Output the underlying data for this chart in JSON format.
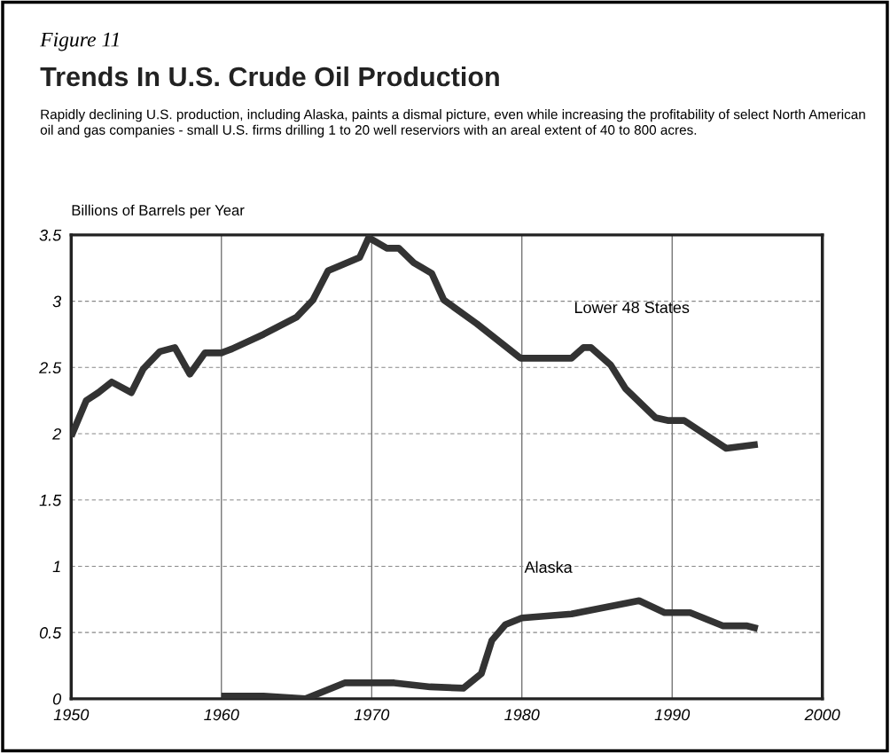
{
  "chart_data": {
    "type": "line",
    "title": "Trends In U.S. Crude Oil Production",
    "subtitle": "Rapidly declining U.S. production, including Alaska, paints a dismal picture, even while increasing the profitability of select North American oil and gas companies - small U.S. firms drilling 1 to 20 well reserviors with an areal extent of 40 to 800 acres.",
    "annotations": [
      "Figure 11"
    ],
    "ylabel": "Billions of Barrels per Year",
    "series": [
      {
        "name": "Lower 48 States",
        "color": "#333333",
        "x": [
          1950,
          1951,
          1951.8,
          1952.7,
          1954,
          1954.8,
          1955.9,
          1956.9,
          1957.9,
          1958.9,
          1960,
          1960.7,
          1962.8,
          1965,
          1966.1,
          1967.1,
          1969.2,
          1969.8,
          1971,
          1971.8,
          1972.8,
          1974,
          1974.8,
          1977,
          1979.9,
          1983.3,
          1984.1,
          1984.6,
          1985.9,
          1986.9,
          1988.9,
          1989.7,
          1990.8,
          1993.6,
          1995.7
        ],
        "values": [
          1.98,
          2.25,
          2.31,
          2.39,
          2.31,
          2.49,
          2.62,
          2.65,
          2.45,
          2.61,
          2.61,
          2.64,
          2.75,
          2.88,
          3.01,
          3.23,
          3.33,
          3.48,
          3.4,
          3.4,
          3.29,
          3.21,
          3.01,
          2.83,
          2.57,
          2.57,
          2.65,
          2.65,
          2.52,
          2.34,
          2.12,
          2.1,
          2.1,
          1.89,
          1.92
        ]
      },
      {
        "name": "Alaska",
        "color": "#333333",
        "x": [
          1960,
          1962.8,
          1965.6,
          1968.2,
          1971.5,
          1973.9,
          1976.1,
          1977.3,
          1978,
          1978.9,
          1980,
          1983.3,
          1987.8,
          1989.5,
          1991.2,
          1993.4,
          1995,
          1995.7
        ],
        "values": [
          0.02,
          0.02,
          0.0,
          0.12,
          0.12,
          0.09,
          0.08,
          0.19,
          0.44,
          0.56,
          0.61,
          0.64,
          0.74,
          0.65,
          0.65,
          0.55,
          0.55,
          0.53
        ]
      }
    ],
    "xlim": [
      1950,
      2000
    ],
    "xticks": [
      1950,
      1960,
      1970,
      1980,
      1990,
      2000
    ],
    "ylim": [
      0,
      3.5
    ],
    "yticks": [
      0,
      0.5,
      1,
      1.5,
      2,
      2.5,
      3,
      3.5
    ],
    "grid": true,
    "legend": false,
    "line_style": "solid",
    "marker": "none"
  }
}
